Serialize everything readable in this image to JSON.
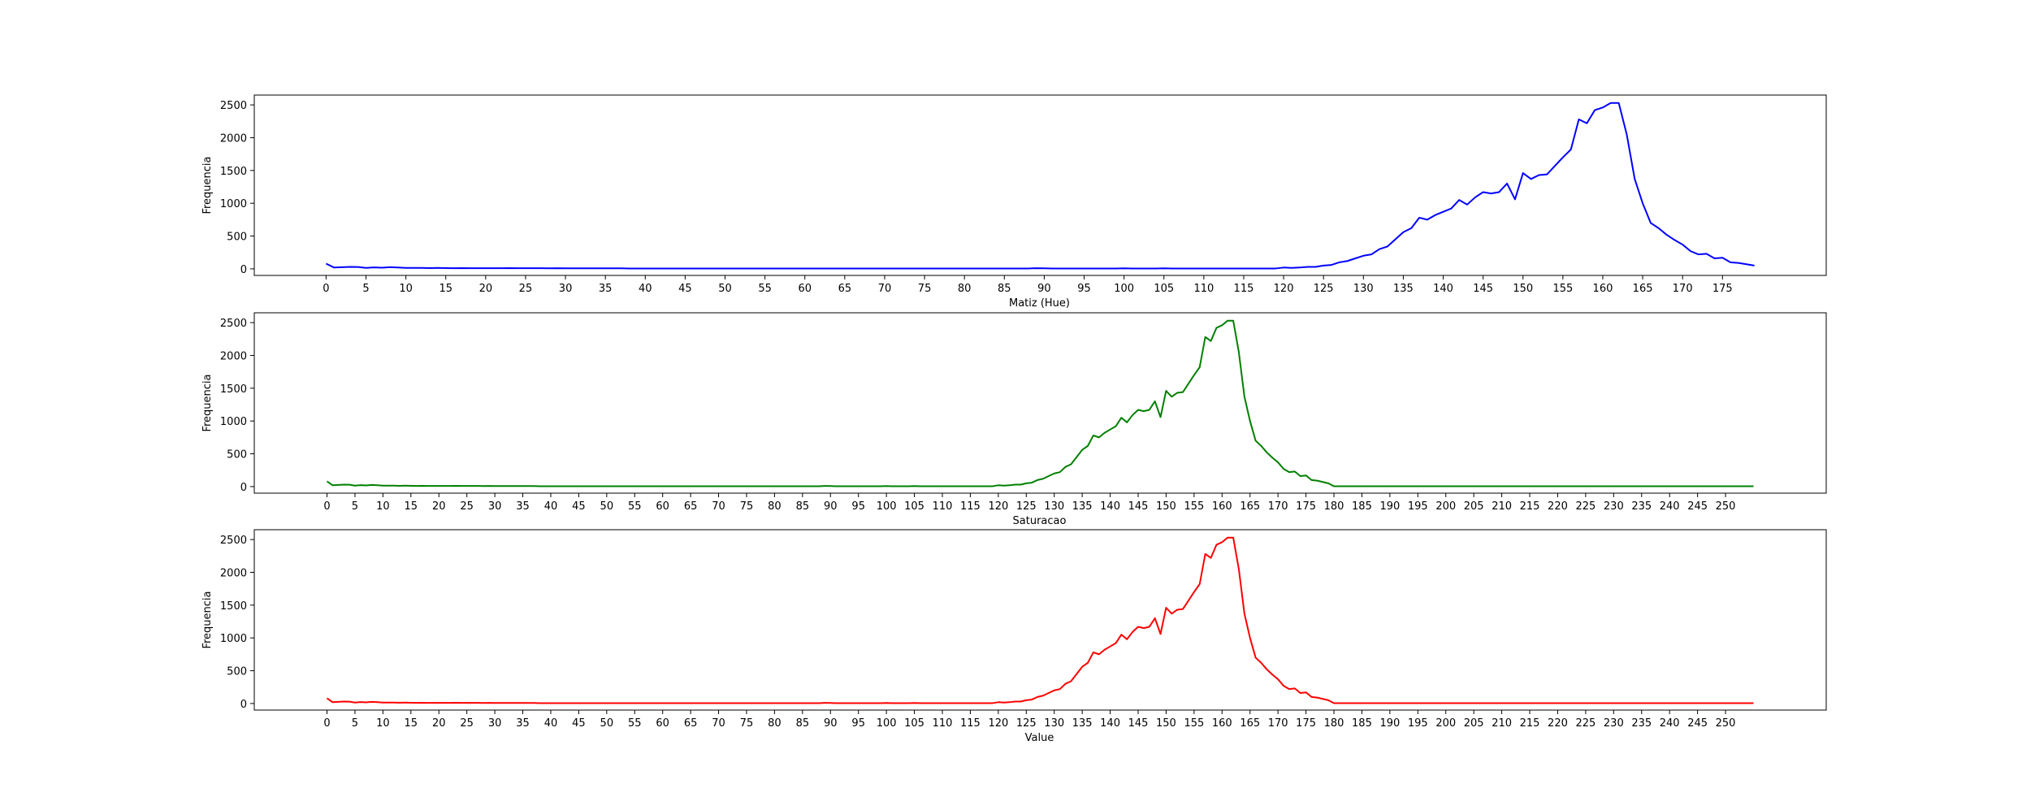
{
  "chart_data": [
    {
      "type": "line",
      "xlabel": "Matiz (Hue)",
      "ylabel": "Frequencia",
      "color": "#0000ff",
      "x_start": 0,
      "ylim": [
        -100,
        2650
      ],
      "xlim": [
        -9,
        188
      ],
      "xticks": [
        0,
        5,
        10,
        15,
        20,
        25,
        30,
        35,
        40,
        45,
        50,
        55,
        60,
        65,
        70,
        75,
        80,
        85,
        90,
        95,
        100,
        105,
        110,
        115,
        120,
        125,
        130,
        135,
        140,
        145,
        150,
        155,
        160,
        165,
        170,
        175
      ],
      "yticks": [
        0,
        500,
        1000,
        1500,
        2000,
        2500
      ],
      "grid": false,
      "values": [
        80,
        20,
        25,
        30,
        28,
        15,
        22,
        18,
        25,
        20,
        15,
        15,
        14,
        12,
        15,
        12,
        10,
        12,
        10,
        10,
        10,
        10,
        10,
        12,
        10,
        10,
        10,
        10,
        8,
        10,
        8,
        8,
        8,
        8,
        8,
        8,
        8,
        8,
        6,
        6,
        6,
        6,
        6,
        6,
        6,
        6,
        6,
        6,
        6,
        6,
        6,
        6,
        6,
        6,
        6,
        6,
        6,
        6,
        6,
        6,
        6,
        6,
        6,
        6,
        6,
        6,
        6,
        6,
        6,
        6,
        6,
        6,
        6,
        6,
        6,
        6,
        6,
        6,
        6,
        6,
        6,
        6,
        6,
        6,
        6,
        6,
        6,
        6,
        6,
        10,
        8,
        6,
        6,
        6,
        6,
        6,
        6,
        6,
        6,
        6,
        8,
        6,
        6,
        6,
        6,
        8,
        6,
        6,
        6,
        6,
        6,
        6,
        6,
        6,
        6,
        6,
        6,
        6,
        6,
        6,
        20,
        15,
        20,
        30,
        30,
        50,
        60,
        100,
        120,
        160,
        200,
        220,
        300,
        340,
        450,
        560,
        620,
        780,
        750,
        820,
        870,
        920,
        1050,
        980,
        1090,
        1170,
        1150,
        1170,
        1300,
        1060,
        1460,
        1370,
        1430,
        1440,
        1570,
        1700,
        1820,
        2280,
        2220,
        2420,
        2460,
        2530,
        2530,
        2050,
        1370,
        1000,
        700,
        620,
        520,
        440,
        370,
        270,
        220,
        230,
        160,
        170,
        100,
        90,
        70,
        50
      ]
    },
    {
      "type": "line",
      "xlabel": "Saturacao",
      "ylabel": "Frequencia",
      "color": "#008000",
      "x_start": 0,
      "ylim": [
        -100,
        2650
      ],
      "xlim": [
        -13,
        268
      ],
      "xticks": [
        0,
        5,
        10,
        15,
        20,
        25,
        30,
        35,
        40,
        45,
        50,
        55,
        60,
        65,
        70,
        75,
        80,
        85,
        90,
        95,
        100,
        105,
        110,
        115,
        120,
        125,
        130,
        135,
        140,
        145,
        150,
        155,
        160,
        165,
        170,
        175,
        180,
        185,
        190,
        195,
        200,
        205,
        210,
        215,
        220,
        225,
        230,
        235,
        240,
        245,
        250
      ],
      "yticks": [
        0,
        500,
        1000,
        1500,
        2000,
        2500
      ],
      "grid": false,
      "values": [
        80,
        20,
        25,
        30,
        28,
        15,
        22,
        18,
        25,
        20,
        15,
        15,
        14,
        12,
        15,
        12,
        10,
        12,
        10,
        10,
        10,
        10,
        10,
        12,
        10,
        10,
        10,
        10,
        8,
        10,
        8,
        8,
        8,
        8,
        8,
        8,
        8,
        8,
        6,
        6,
        6,
        6,
        6,
        6,
        6,
        6,
        6,
        6,
        6,
        6,
        6,
        6,
        6,
        6,
        6,
        6,
        6,
        6,
        6,
        6,
        6,
        6,
        6,
        6,
        6,
        6,
        6,
        6,
        6,
        6,
        6,
        6,
        6,
        6,
        6,
        6,
        6,
        6,
        6,
        6,
        6,
        6,
        6,
        6,
        6,
        6,
        6,
        6,
        6,
        10,
        8,
        6,
        6,
        6,
        6,
        6,
        6,
        6,
        6,
        6,
        8,
        6,
        6,
        6,
        6,
        8,
        6,
        6,
        6,
        6,
        6,
        6,
        6,
        6,
        6,
        6,
        6,
        6,
        6,
        6,
        20,
        15,
        20,
        30,
        30,
        50,
        60,
        100,
        120,
        160,
        200,
        220,
        300,
        340,
        450,
        560,
        620,
        780,
        750,
        820,
        870,
        920,
        1050,
        980,
        1090,
        1170,
        1150,
        1170,
        1300,
        1060,
        1460,
        1370,
        1430,
        1440,
        1570,
        1700,
        1820,
        2280,
        2220,
        2420,
        2460,
        2530,
        2530,
        2050,
        1370,
        1000,
        700,
        620,
        520,
        440,
        370,
        270,
        220,
        230,
        160,
        170,
        100,
        90,
        70,
        50,
        5,
        5,
        5,
        5,
        5,
        5,
        5,
        5,
        5,
        5,
        5,
        5,
        5,
        5,
        5,
        5,
        5,
        5,
        5,
        5,
        5,
        5,
        5,
        5,
        5,
        5,
        5,
        5,
        5,
        5,
        5,
        5,
        5,
        5,
        5,
        5,
        5,
        5,
        5,
        5,
        5,
        5,
        5,
        5,
        5,
        5,
        5,
        5,
        5,
        5,
        5,
        5,
        5,
        5,
        5,
        5,
        5,
        5,
        5,
        5,
        5,
        5,
        5,
        5,
        5,
        5,
        5,
        5,
        5,
        5,
        5,
        5,
        5,
        5,
        5,
        5
      ]
    },
    {
      "type": "line",
      "xlabel": "Value",
      "ylabel": "Frequencia",
      "color": "#ff0000",
      "x_start": 0,
      "ylim": [
        -100,
        2650
      ],
      "xlim": [
        -13,
        268
      ],
      "xticks": [
        0,
        5,
        10,
        15,
        20,
        25,
        30,
        35,
        40,
        45,
        50,
        55,
        60,
        65,
        70,
        75,
        80,
        85,
        90,
        95,
        100,
        105,
        110,
        115,
        120,
        125,
        130,
        135,
        140,
        145,
        150,
        155,
        160,
        165,
        170,
        175,
        180,
        185,
        190,
        195,
        200,
        205,
        210,
        215,
        220,
        225,
        230,
        235,
        240,
        245,
        250
      ],
      "yticks": [
        0,
        500,
        1000,
        1500,
        2000,
        2500
      ],
      "grid": false,
      "values": [
        80,
        20,
        25,
        30,
        28,
        15,
        22,
        18,
        25,
        20,
        15,
        15,
        14,
        12,
        15,
        12,
        10,
        12,
        10,
        10,
        10,
        10,
        10,
        12,
        10,
        10,
        10,
        10,
        8,
        10,
        8,
        8,
        8,
        8,
        8,
        8,
        8,
        8,
        6,
        6,
        6,
        6,
        6,
        6,
        6,
        6,
        6,
        6,
        6,
        6,
        6,
        6,
        6,
        6,
        6,
        6,
        6,
        6,
        6,
        6,
        6,
        6,
        6,
        6,
        6,
        6,
        6,
        6,
        6,
        6,
        6,
        6,
        6,
        6,
        6,
        6,
        6,
        6,
        6,
        6,
        6,
        6,
        6,
        6,
        6,
        6,
        6,
        6,
        6,
        10,
        8,
        6,
        6,
        6,
        6,
        6,
        6,
        6,
        6,
        6,
        8,
        6,
        6,
        6,
        6,
        8,
        6,
        6,
        6,
        6,
        6,
        6,
        6,
        6,
        6,
        6,
        6,
        6,
        6,
        6,
        20,
        15,
        20,
        30,
        30,
        50,
        60,
        100,
        120,
        160,
        200,
        220,
        300,
        340,
        450,
        560,
        620,
        780,
        750,
        820,
        870,
        920,
        1050,
        980,
        1090,
        1170,
        1150,
        1170,
        1300,
        1060,
        1460,
        1370,
        1430,
        1440,
        1570,
        1700,
        1820,
        2280,
        2220,
        2420,
        2460,
        2530,
        2530,
        2050,
        1370,
        1000,
        700,
        620,
        520,
        440,
        370,
        270,
        220,
        230,
        160,
        170,
        100,
        90,
        70,
        50,
        5,
        5,
        5,
        5,
        5,
        5,
        5,
        5,
        5,
        5,
        5,
        5,
        5,
        5,
        5,
        5,
        5,
        5,
        5,
        5,
        5,
        5,
        5,
        5,
        5,
        5,
        5,
        5,
        5,
        5,
        5,
        5,
        5,
        5,
        5,
        5,
        5,
        5,
        5,
        5,
        5,
        5,
        5,
        5,
        5,
        5,
        5,
        5,
        5,
        5,
        5,
        5,
        5,
        5,
        5,
        5,
        5,
        5,
        5,
        5,
        5,
        5,
        5,
        5,
        5,
        5,
        5,
        5,
        5,
        5,
        5,
        5,
        5,
        5,
        5,
        5
      ]
    }
  ]
}
